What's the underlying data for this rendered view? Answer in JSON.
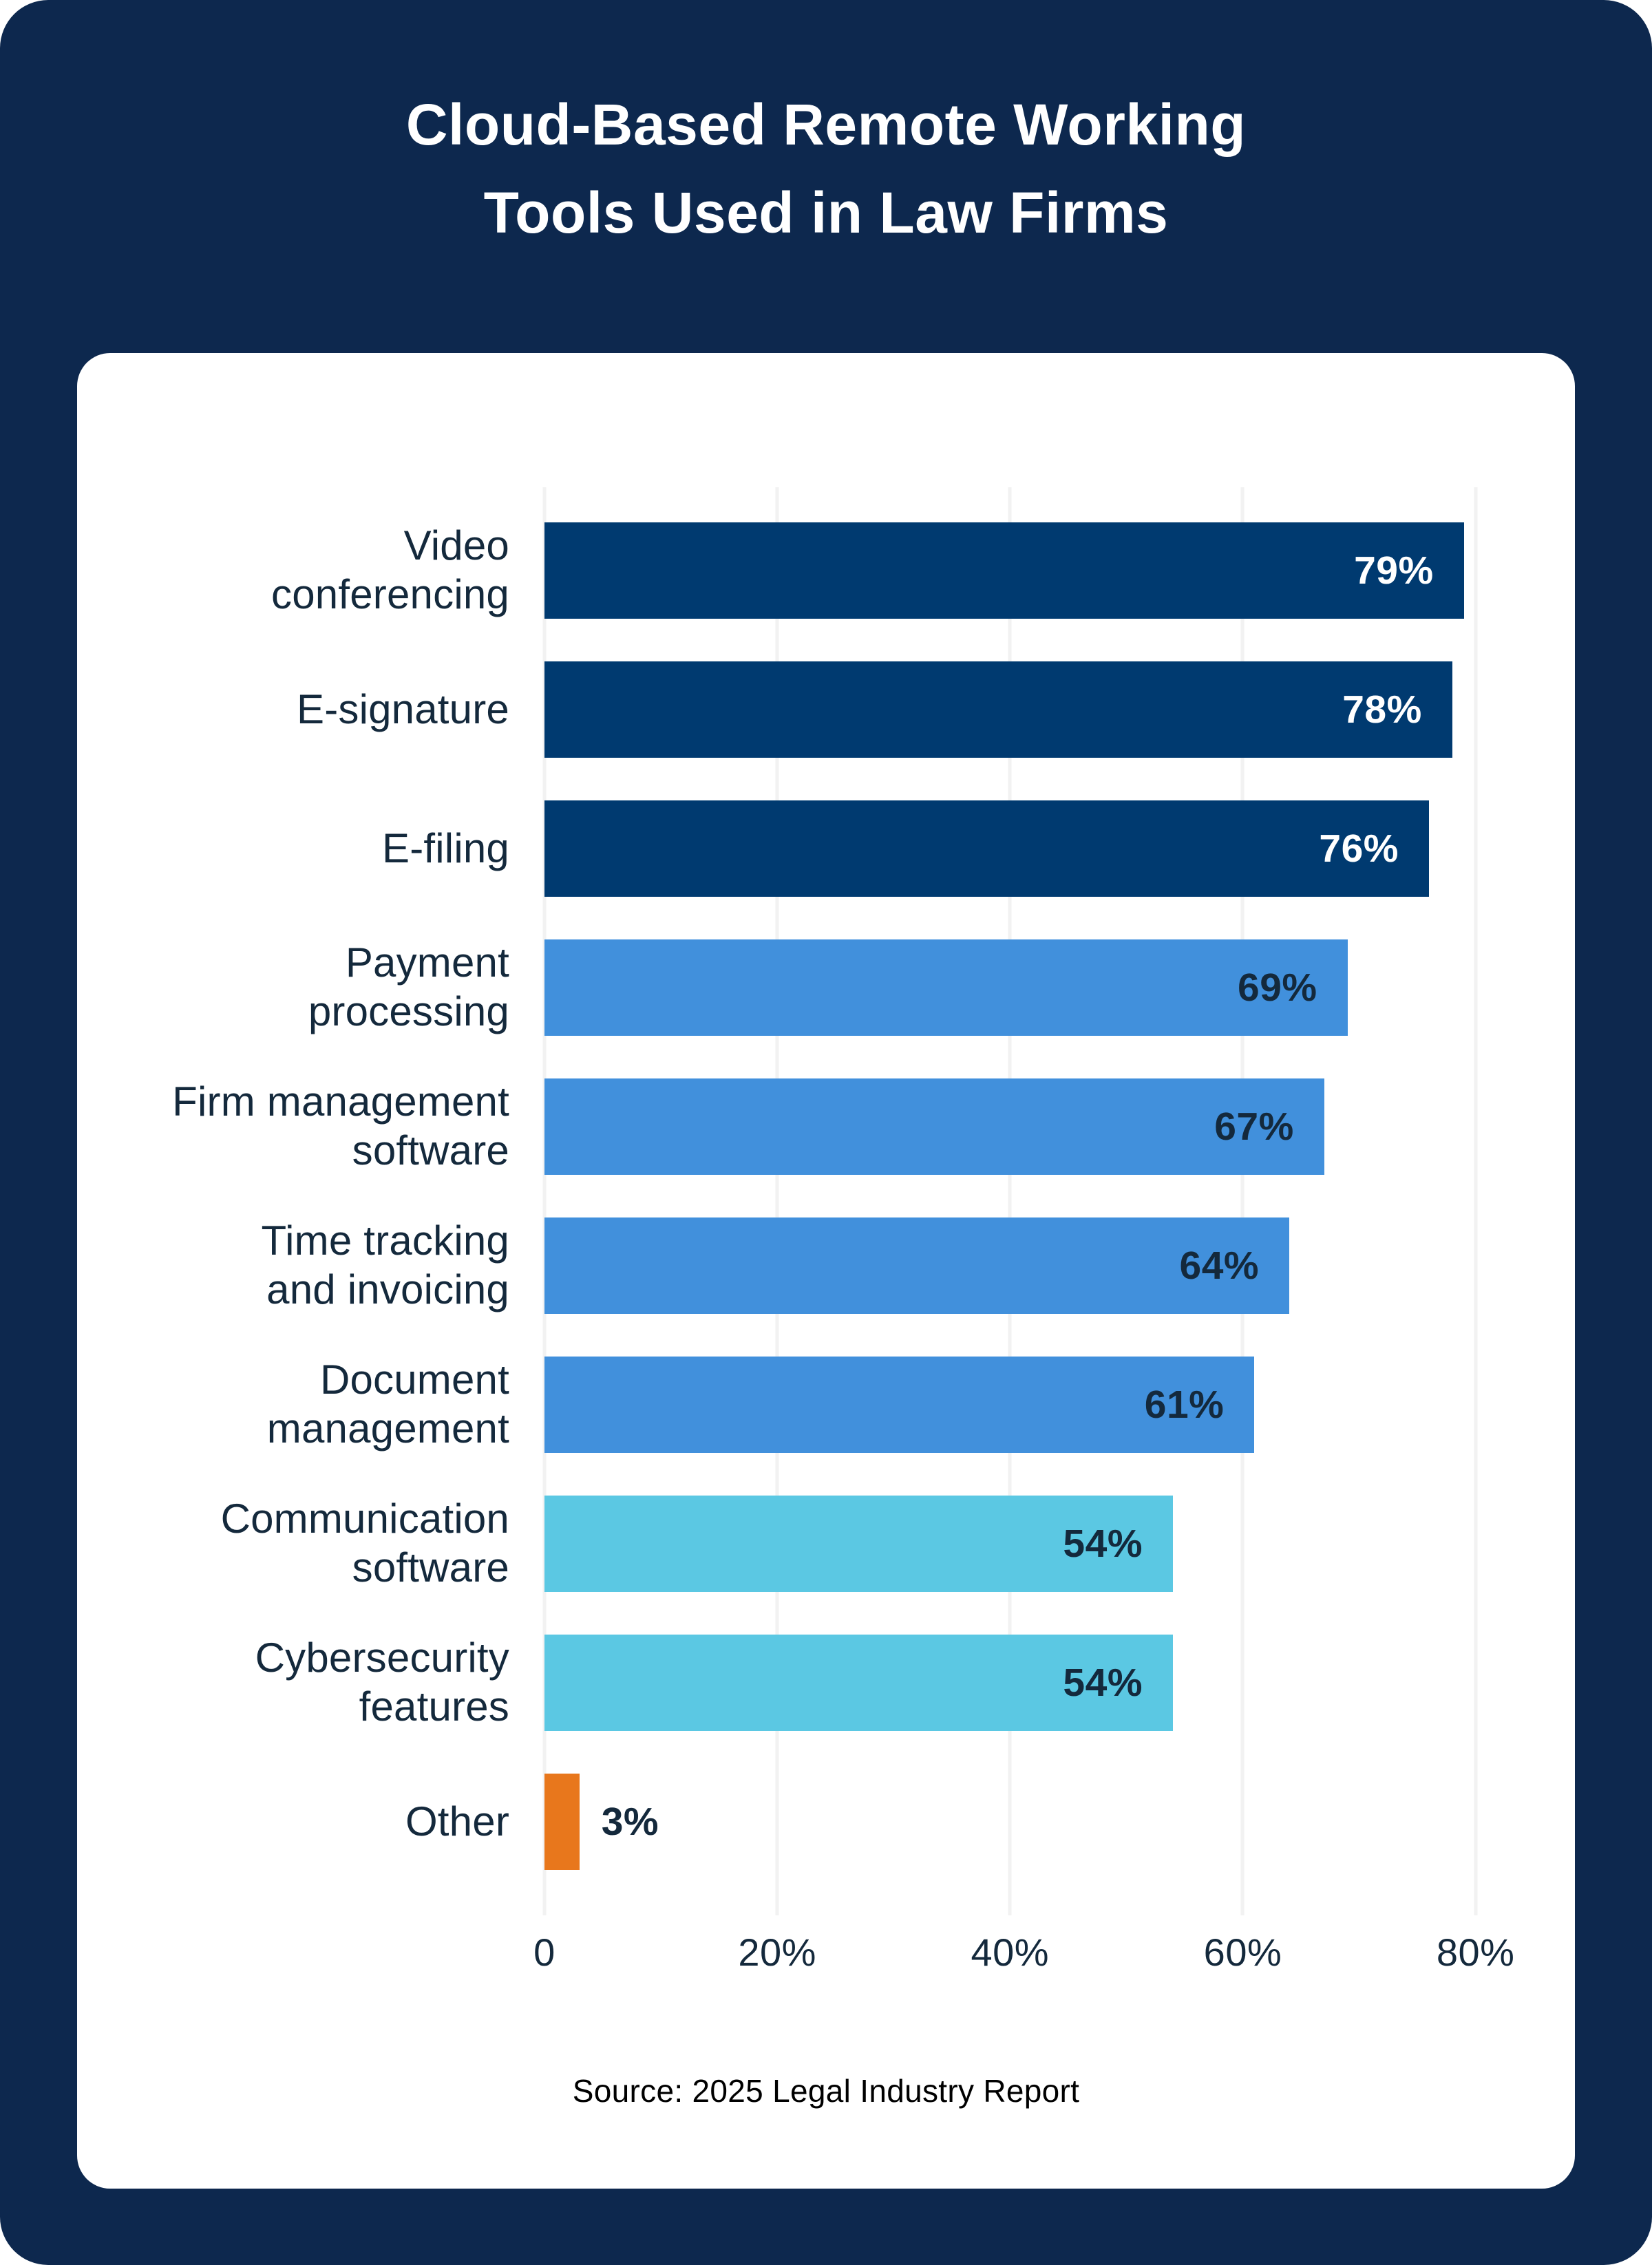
{
  "page": {
    "title": "Cloud-Based Remote Working\nTools Used in Law Firms",
    "source": "Source: 2025 Legal Industry Report"
  },
  "colors": {
    "background_navy": "#0D284E",
    "card_white": "#FFFFFF",
    "bar_dark_navy": "#003A70",
    "bar_medium_blue": "#4190DC",
    "bar_light_cyan": "#5BC8E3",
    "bar_orange": "#E8771C",
    "text_dark": "#14293C",
    "text_light": "#FFFFFF",
    "gridline": "#F2F2F2"
  },
  "chart_data": {
    "type": "bar",
    "orientation": "horizontal",
    "title": "Cloud-Based Remote Working Tools Used in Law Firms",
    "categories": [
      "Video\nconferencing",
      "E-signature",
      "E-filing",
      "Payment\nprocessing",
      "Firm management\nsoftware",
      "Time tracking\nand invoicing",
      "Document\nmanagement",
      "Communication\nsoftware",
      "Cybersecurity\nfeatures",
      "Other"
    ],
    "values": [
      79,
      78,
      76,
      69,
      67,
      64,
      61,
      54,
      54,
      3
    ],
    "value_labels": [
      "79%",
      "78%",
      "76%",
      "69%",
      "67%",
      "64%",
      "61%",
      "54%",
      "54%",
      "3%"
    ],
    "bar_colors": [
      "#003A70",
      "#003A70",
      "#003A70",
      "#4190DC",
      "#4190DC",
      "#4190DC",
      "#4190DC",
      "#5BC8E3",
      "#5BC8E3",
      "#E8771C"
    ],
    "value_label_colors": [
      "#FFFFFF",
      "#FFFFFF",
      "#FFFFFF",
      "#14293C",
      "#14293C",
      "#14293C",
      "#14293C",
      "#14293C",
      "#14293C",
      "#14293C"
    ],
    "value_label_outside": [
      false,
      false,
      false,
      false,
      false,
      false,
      false,
      false,
      false,
      true
    ],
    "xlabel": "",
    "ylabel": "",
    "xlim": [
      0,
      85.7
    ],
    "tick_values": [
      0,
      20,
      40,
      60,
      80
    ],
    "tick_labels": [
      "0",
      "20%",
      "40%",
      "60%",
      "80%"
    ],
    "grid": true,
    "legend": false,
    "source": "Source: 2025 Legal Industry Report"
  }
}
